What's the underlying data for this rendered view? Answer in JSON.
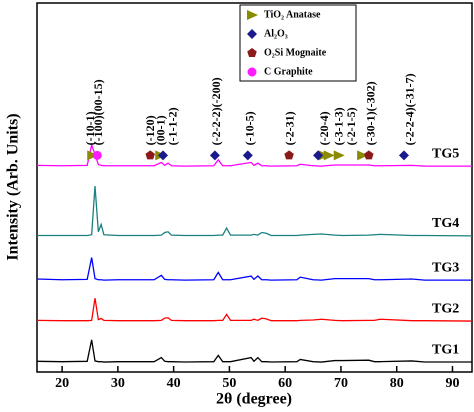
{
  "chart_data": {
    "type": "line",
    "xlabel": "2θ (degree)",
    "ylabel": "Intensity (Arb. Units)",
    "xlim": [
      15.5,
      93.5
    ],
    "xticks": [
      20,
      30,
      40,
      50,
      60,
      70,
      80,
      90
    ],
    "ylim": [
      0,
      100
    ],
    "x": [
      15.5,
      20,
      24.5,
      25.3,
      25.9,
      26.5,
      27.0,
      27.5,
      30,
      36.5,
      37.8,
      38.4,
      39.0,
      39.6,
      42,
      47.2,
      48.0,
      48.8,
      49.5,
      50.2,
      53.9,
      54.4,
      55.1,
      55.8,
      56.6,
      57.5,
      62.1,
      62.7,
      65.0,
      66.5,
      68.9,
      70.3,
      75.0,
      76.0,
      77.0,
      82.7,
      85,
      93.5
    ],
    "series": [
      {
        "name": "TG1",
        "color": "#000000",
        "values": [
          2.9,
          2.8,
          2.9,
          8.7,
          3.0,
          2.8,
          2.8,
          2.7,
          2.8,
          2.8,
          3.9,
          2.9,
          2.8,
          2.8,
          2.7,
          2.8,
          4.5,
          2.8,
          2.8,
          2.8,
          3.9,
          2.9,
          3.9,
          2.8,
          2.8,
          2.7,
          2.8,
          3.4,
          2.8,
          2.7,
          3.1,
          3.1,
          3.2,
          2.8,
          2.8,
          3.0,
          2.7,
          2.7
        ]
      },
      {
        "name": "TG2",
        "color": "#ff0000",
        "values": [
          14.0,
          13.9,
          13.9,
          14.0,
          20.0,
          14.2,
          14.5,
          14.0,
          13.9,
          13.9,
          14.0,
          14.6,
          14.7,
          14.0,
          13.9,
          13.9,
          14.0,
          14.0,
          15.6,
          14.0,
          14.0,
          14.3,
          14.0,
          14.6,
          14.4,
          13.9,
          13.9,
          14.0,
          14.1,
          14.3,
          14.0,
          13.9,
          14.0,
          14.0,
          14.3,
          13.9,
          13.9,
          13.8
        ]
      },
      {
        "name": "TG3",
        "color": "#0000ff",
        "values": [
          25.2,
          25.0,
          25.1,
          31.0,
          25.3,
          25.0,
          25.0,
          24.9,
          25.0,
          25.0,
          26.2,
          25.1,
          25.0,
          25.0,
          24.9,
          25.0,
          27.0,
          25.0,
          25.0,
          25.0,
          26.0,
          25.1,
          26.0,
          25.0,
          25.0,
          24.9,
          25.0,
          25.7,
          25.0,
          24.9,
          25.3,
          25.3,
          25.3,
          25.0,
          25.0,
          25.2,
          24.9,
          24.9
        ]
      },
      {
        "name": "TG4",
        "color": "#1a8080",
        "values": [
          37.0,
          37.0,
          37.0,
          37.2,
          50.4,
          38.0,
          40.0,
          37.2,
          37.0,
          37.0,
          37.1,
          37.8,
          38.0,
          37.1,
          37.0,
          37.0,
          37.1,
          37.1,
          39.0,
          37.1,
          37.1,
          37.3,
          37.1,
          37.8,
          37.6,
          37.0,
          37.0,
          37.1,
          37.3,
          37.4,
          37.1,
          37.0,
          37.1,
          37.2,
          37.3,
          37.0,
          37.0,
          36.9
        ]
      },
      {
        "name": "TG5",
        "color": "#ff00ff",
        "values": [
          56.0,
          55.9,
          56.0,
          61.5,
          59.0,
          56.2,
          56.0,
          55.9,
          55.9,
          55.9,
          56.8,
          56.0,
          56.6,
          55.9,
          55.8,
          55.9,
          57.5,
          55.9,
          55.9,
          55.9,
          56.8,
          56.0,
          56.6,
          55.9,
          55.9,
          55.8,
          55.9,
          56.3,
          55.9,
          55.8,
          56.1,
          56.1,
          56.1,
          55.9,
          55.9,
          56.0,
          55.8,
          55.8
        ]
      }
    ],
    "phases": [
      {
        "name": "TiO₂ Anatase",
        "color": "#8b8b00",
        "marker": "triangle",
        "x": [
          25.4,
          37.6,
          66.9,
          67.8,
          69.6,
          73.8
        ]
      },
      {
        "name": "Al₂O₃",
        "color": "#1a1a8c",
        "marker": "diamond",
        "x": [
          38.1,
          47.4,
          53.3,
          65.9,
          81.3
        ]
      },
      {
        "name": "O₂Si Mognaite",
        "color": "#8b1a1a",
        "marker": "pentagon",
        "x": [
          35.8,
          60.7,
          75.0
        ]
      },
      {
        "name": "C Graphite",
        "color": "#ff1aff",
        "marker": "circle",
        "x": [
          26.3
        ]
      }
    ],
    "annotations": [
      {
        "text": "(-10-1)",
        "x": 25.2
      },
      {
        "text": "(-100)(00-15)",
        "x": 26.7
      },
      {
        "text": "(-120)",
        "x": 36.0
      },
      {
        "text": "(00-1)",
        "x": 37.9
      },
      {
        "text": "(-1-1-2)",
        "x": 40.0
      },
      {
        "text": "(-2-2-2)(-200)",
        "x": 47.8
      },
      {
        "text": "(-10-5)",
        "x": 53.8
      },
      {
        "text": "(-2-31)",
        "x": 61.0
      },
      {
        "text": "(-20-4)",
        "x": 67.2
      },
      {
        "text": "(-3-1-3)",
        "x": 69.8
      },
      {
        "text": "(-2-1-5)",
        "x": 72.0
      },
      {
        "text": "(-30-1)(-302)",
        "x": 75.5
      },
      {
        "text": "(-2-2-4)(-31-7)",
        "x": 82.5
      }
    ]
  }
}
